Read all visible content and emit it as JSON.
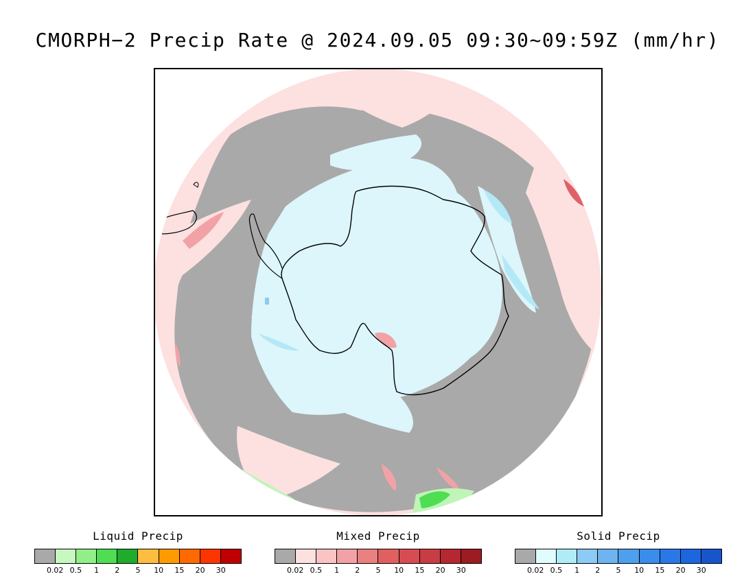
{
  "title": "CMORPH−2 Precip Rate @ 2024.09.05 09:30~09:59Z (mm/hr)",
  "map": {
    "projection": "south-polar-stereographic",
    "colors": {
      "no_precip": "#a9a9a9",
      "mixed_light": "#fde0e0",
      "mixed_moderate": "#f2a2a6",
      "mixed_heavy": "#e0606a",
      "solid_light": "#dcf6fb",
      "solid_moderate": "#b3e8f7",
      "solid_heavy": "#8ccbef",
      "liquid_light": "#c0f5b9",
      "liquid_moderate": "#4fdd53",
      "coastline": "#000000"
    }
  },
  "legends": [
    {
      "id": "liquid",
      "title": "Liquid Precip",
      "colors": [
        "#a9a9a9",
        "#c7f8c0",
        "#92ee88",
        "#4fdd53",
        "#20ab2c",
        "#ffbd3f",
        "#ff9a00",
        "#ff6a00",
        "#ff3500",
        "#c00000"
      ],
      "ticks": [
        "0.02",
        "0.5",
        "1",
        "2",
        "5",
        "10",
        "15",
        "20",
        "30"
      ]
    },
    {
      "id": "mixed",
      "title": "Mixed Precip",
      "colors": [
        "#a9a9a9",
        "#fde0e0",
        "#fbc4c4",
        "#f2a2a6",
        "#ea8080",
        "#e06060",
        "#d64c52",
        "#c83c44",
        "#b52832",
        "#9c1c24"
      ],
      "ticks": [
        "0.02",
        "0.5",
        "1",
        "2",
        "5",
        "10",
        "15",
        "20",
        "30"
      ]
    },
    {
      "id": "solid",
      "title": "Solid Precip",
      "colors": [
        "#a9a9a9",
        "#e0fcfd",
        "#b0ecf8",
        "#8ccbf5",
        "#6eb4f0",
        "#4da0ee",
        "#3a8ced",
        "#2a78e8",
        "#1c66e0",
        "#1655cc"
      ],
      "ticks": [
        "0.02",
        "0.5",
        "1",
        "2",
        "5",
        "10",
        "15",
        "20",
        "30"
      ]
    }
  ]
}
